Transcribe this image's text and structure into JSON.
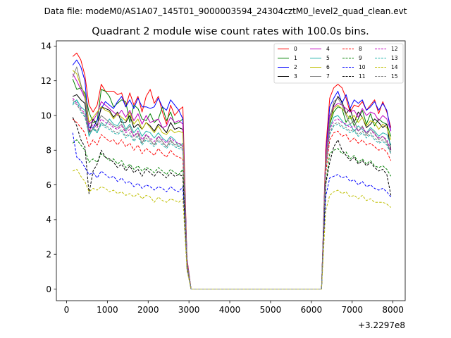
{
  "chart_data": {
    "type": "line",
    "suptitle": "Data file: modeM0/AS1A07_145T01_9000003594_24304cztM0_level2_quad_clean.evt",
    "title": "Quadrant 2 module wise count rates with 100.0s bins.",
    "xlabel": "",
    "ylabel": "",
    "x_offset_label": "+3.2297e8",
    "xlim": [
      -250,
      8300
    ],
    "ylim": [
      -0.67,
      14.3
    ],
    "xticks": [
      0,
      1000,
      2000,
      3000,
      4000,
      5000,
      6000,
      7000,
      8000
    ],
    "xtick_labels": [
      "0",
      "1000",
      "2000",
      "3000",
      "4000",
      "5000",
      "6000",
      "7000",
      "8000"
    ],
    "yticks": [
      0,
      2,
      4,
      6,
      8,
      10,
      12,
      14
    ],
    "ytick_labels": [
      "0",
      "2",
      "4",
      "6",
      "8",
      "10",
      "12",
      "14"
    ],
    "legend_position": "upper-right",
    "legend_columns": 4,
    "x": [
      150,
      250,
      350,
      450,
      550,
      650,
      750,
      850,
      950,
      1050,
      1150,
      1250,
      1350,
      1450,
      1550,
      1650,
      1750,
      1850,
      1950,
      2050,
      2150,
      2250,
      2350,
      2450,
      2550,
      2650,
      2750,
      2850,
      2950,
      3050,
      6250,
      6350,
      6450,
      6550,
      6650,
      6750,
      6850,
      6950,
      7050,
      7150,
      7250,
      7350,
      7450,
      7550,
      7650,
      7750,
      7850,
      7950
    ],
    "series": [
      {
        "name": "0",
        "color": "#ff0000",
        "dash": "solid",
        "values": [
          13.4,
          13.6,
          13.2,
          12.3,
          10.6,
          10.2,
          10.6,
          11.8,
          11.4,
          11.4,
          11.4,
          11.2,
          11.3,
          10.5,
          11.3,
          10.6,
          11.1,
          10.2,
          11.1,
          11.5,
          10.7,
          11.1,
          10.2,
          9.5,
          10.6,
          10.0,
          10.3,
          10.5,
          1.8,
          0.0,
          0.0,
          8.0,
          11.0,
          11.6,
          11.8,
          11.6,
          11.0,
          10.2,
          10.6,
          10.5,
          10.8,
          10.3,
          10.6,
          10.9,
          10.1,
          10.8,
          10.2,
          9.3
        ]
      },
      {
        "name": "1",
        "color": "#008000",
        "dash": "solid",
        "values": [
          12.1,
          11.5,
          11.6,
          11.3,
          10.2,
          9.6,
          9.7,
          11.5,
          11.4,
          11.1,
          10.5,
          10.7,
          10.9,
          10.8,
          9.6,
          10.6,
          10.4,
          9.8,
          9.7,
          10.1,
          9.6,
          9.8,
          10.5,
          9.7,
          10.2,
          9.5,
          9.6,
          9.8,
          1.6,
          0.0,
          0.0,
          7.4,
          9.5,
          10.2,
          10.5,
          10.4,
          9.6,
          10.0,
          9.4,
          9.8,
          10.3,
          9.5,
          10.1,
          9.4,
          9.8,
          9.6,
          9.5,
          8.8
        ]
      },
      {
        "name": "2",
        "color": "#0000ff",
        "dash": "solid",
        "values": [
          12.9,
          13.2,
          12.8,
          12.0,
          9.3,
          9.3,
          9.7,
          10.4,
          10.8,
          10.6,
          10.4,
          10.8,
          11.1,
          10.5,
          10.9,
          10.4,
          11.0,
          10.5,
          10.5,
          10.4,
          10.5,
          11.0,
          10.5,
          10.3,
          10.9,
          10.6,
          10.3,
          9.8,
          1.7,
          0.0,
          0.0,
          7.6,
          10.5,
          11.0,
          11.4,
          10.7,
          11.2,
          10.4,
          10.9,
          10.7,
          10.9,
          10.3,
          10.5,
          10.8,
          10.3,
          10.7,
          10.3,
          9.1
        ]
      },
      {
        "name": "3",
        "color": "#000000",
        "dash": "solid",
        "values": [
          11.1,
          11.2,
          10.9,
          10.7,
          9.0,
          9.8,
          9.4,
          10.5,
          10.4,
          10.3,
          9.9,
          10.2,
          9.6,
          9.6,
          10.0,
          9.3,
          9.5,
          9.2,
          9.6,
          9.4,
          9.1,
          9.5,
          9.3,
          9.0,
          9.6,
          9.2,
          9.3,
          9.2,
          1.6,
          0.0,
          0.0,
          7.3,
          9.5,
          10.6,
          11.1,
          10.8,
          10.1,
          10.4,
          9.6,
          10.2,
          9.9,
          9.3,
          9.5,
          9.8,
          9.6,
          9.3,
          9.5,
          8.0
        ]
      },
      {
        "name": "4",
        "color": "#bf00bf",
        "dash": "solid",
        "values": [
          12.4,
          12.0,
          11.5,
          11.0,
          9.5,
          9.7,
          10.1,
          10.8,
          10.6,
          10.4,
          10.2,
          10.0,
          10.3,
          9.9,
          10.3,
          9.7,
          10.1,
          9.5,
          10.0,
          9.6,
          9.7,
          9.8,
          9.3,
          9.4,
          9.9,
          9.6,
          9.7,
          9.5,
          1.7,
          0.0,
          0.0,
          7.5,
          10.0,
          10.5,
          10.7,
          10.6,
          10.4,
          10.2,
          10.3,
          9.9,
          10.4,
          10.0,
          10.2,
          10.1,
          9.7,
          10.0,
          9.8,
          9.1
        ]
      },
      {
        "name": "5",
        "color": "#20b2aa",
        "dash": "solid",
        "values": [
          10.7,
          10.9,
          10.5,
          10.3,
          8.8,
          9.3,
          9.0,
          9.6,
          9.4,
          9.8,
          9.5,
          9.4,
          9.8,
          9.2,
          9.5,
          9.0,
          9.3,
          8.8,
          9.1,
          9.0,
          8.7,
          9.0,
          8.7,
          8.5,
          8.8,
          8.6,
          8.2,
          8.4,
          1.5,
          0.0,
          0.0,
          7.1,
          9.3,
          9.9,
          10.0,
          9.7,
          9.4,
          9.5,
          9.1,
          9.4,
          9.2,
          9.0,
          9.3,
          9.1,
          8.8,
          9.0,
          8.9,
          8.3
        ]
      },
      {
        "name": "6",
        "color": "#bfbf00",
        "dash": "solid",
        "values": [
          12.6,
          12.4,
          11.7,
          11.2,
          9.6,
          9.9,
          10.2,
          10.5,
          10.3,
          10.2,
          9.8,
          10.1,
          9.9,
          9.7,
          10.2,
          9.5,
          9.8,
          9.2,
          9.6,
          9.3,
          9.0,
          9.4,
          9.0,
          8.9,
          9.2,
          9.0,
          9.1,
          9.0,
          1.6,
          0.0,
          0.0,
          7.3,
          9.6,
          10.4,
          10.6,
          10.4,
          10.1,
          9.8,
          10.0,
          9.6,
          9.9,
          9.4,
          9.7,
          9.6,
          9.2,
          9.5,
          9.3,
          8.6
        ]
      },
      {
        "name": "7",
        "color": "#808080",
        "dash": "solid",
        "values": [
          12.2,
          12.8,
          11.8,
          11.0,
          9.0,
          9.2,
          9.5,
          10.0,
          9.8,
          9.6,
          9.4,
          9.3,
          9.5,
          9.1,
          9.4,
          8.8,
          9.0,
          8.4,
          8.9,
          8.6,
          8.3,
          8.8,
          8.5,
          8.2,
          8.6,
          8.3,
          8.4,
          8.2,
          1.5,
          0.0,
          0.0,
          7.0,
          9.8,
          10.8,
          11.0,
          10.6,
          10.0,
          9.5,
          9.7,
          9.1,
          9.4,
          8.9,
          9.2,
          9.0,
          8.6,
          8.8,
          8.5,
          7.8
        ]
      },
      {
        "name": "8",
        "color": "#ff0000",
        "dash": "dashed",
        "values": [
          9.8,
          9.6,
          9.3,
          9.0,
          8.2,
          8.6,
          8.3,
          8.9,
          8.7,
          8.5,
          8.6,
          8.3,
          8.6,
          8.2,
          8.4,
          8.0,
          8.3,
          7.8,
          8.1,
          7.9,
          7.7,
          8.1,
          7.8,
          7.6,
          8.0,
          7.7,
          7.6,
          7.5,
          1.4,
          0.0,
          0.0,
          6.6,
          8.6,
          9.0,
          9.1,
          8.8,
          8.9,
          8.5,
          8.7,
          8.4,
          8.6,
          8.3,
          8.4,
          8.2,
          8.0,
          8.1,
          7.9,
          7.4
        ]
      },
      {
        "name": "9",
        "color": "#008000",
        "dash": "dashed",
        "values": [
          8.4,
          8.6,
          8.3,
          8.0,
          7.3,
          7.5,
          7.3,
          7.8,
          7.6,
          7.4,
          7.5,
          7.2,
          7.4,
          7.0,
          7.2,
          6.9,
          7.1,
          6.8,
          7.0,
          6.9,
          6.7,
          7.0,
          6.8,
          6.6,
          6.9,
          6.7,
          6.6,
          6.9,
          1.3,
          0.0,
          0.0,
          6.0,
          7.8,
          8.0,
          8.1,
          7.8,
          7.9,
          7.5,
          7.7,
          7.3,
          7.5,
          7.2,
          7.4,
          7.1,
          7.0,
          7.1,
          6.9,
          6.5
        ]
      },
      {
        "name": "10",
        "color": "#0000ff",
        "dash": "dashed",
        "values": [
          9.0,
          7.6,
          7.4,
          7.0,
          6.6,
          6.7,
          6.4,
          6.8,
          6.6,
          6.4,
          6.5,
          6.2,
          6.4,
          6.1,
          6.2,
          5.9,
          6.1,
          5.8,
          6.0,
          5.9,
          5.7,
          5.9,
          5.8,
          5.6,
          5.9,
          5.7,
          5.6,
          5.9,
          1.2,
          0.0,
          0.0,
          5.3,
          6.4,
          6.5,
          6.6,
          6.4,
          6.5,
          6.2,
          6.3,
          6.0,
          6.2,
          5.9,
          6.0,
          5.8,
          5.7,
          5.8,
          5.6,
          5.3
        ]
      },
      {
        "name": "11",
        "color": "#000000",
        "dash": "dashed",
        "values": [
          9.9,
          9.4,
          8.6,
          8.2,
          5.5,
          6.8,
          7.2,
          8.0,
          7.6,
          7.5,
          7.3,
          7.0,
          7.2,
          6.8,
          7.1,
          6.7,
          6.9,
          6.5,
          6.9,
          6.7,
          6.5,
          6.8,
          6.6,
          6.4,
          6.7,
          6.5,
          6.6,
          6.5,
          1.3,
          0.0,
          0.0,
          6.0,
          7.3,
          8.2,
          8.6,
          8.0,
          7.7,
          7.4,
          7.6,
          7.2,
          7.4,
          7.1,
          7.3,
          7.0,
          6.8,
          6.9,
          6.6,
          5.4
        ]
      },
      {
        "name": "12",
        "color": "#bf00bf",
        "dash": "dashed",
        "values": [
          11.0,
          10.7,
          10.4,
          10.1,
          9.1,
          9.5,
          9.3,
          9.8,
          9.6,
          9.5,
          9.3,
          9.2,
          9.4,
          9.0,
          9.2,
          8.8,
          9.1,
          8.6,
          8.9,
          8.7,
          8.5,
          8.8,
          8.6,
          8.4,
          8.7,
          8.5,
          8.4,
          8.3,
          1.5,
          0.0,
          0.0,
          7.1,
          9.2,
          9.7,
          9.8,
          9.6,
          9.5,
          9.3,
          9.4,
          9.1,
          9.3,
          9.0,
          9.2,
          8.9,
          8.7,
          8.8,
          8.6,
          8.0
        ]
      },
      {
        "name": "13",
        "color": "#20b2aa",
        "dash": "dashed",
        "values": [
          10.6,
          10.9,
          10.2,
          9.9,
          8.9,
          9.2,
          9.0,
          9.5,
          9.3,
          9.2,
          9.0,
          8.9,
          9.1,
          8.7,
          8.9,
          8.5,
          8.8,
          8.3,
          8.6,
          8.4,
          8.2,
          8.5,
          8.3,
          8.1,
          8.4,
          8.2,
          8.1,
          8.0,
          1.5,
          0.0,
          0.0,
          6.9,
          8.9,
          9.4,
          9.5,
          9.3,
          9.2,
          9.0,
          9.1,
          8.8,
          9.0,
          8.7,
          8.9,
          8.6,
          8.4,
          8.5,
          8.3,
          7.8
        ]
      },
      {
        "name": "14",
        "color": "#bfbf00",
        "dash": "dashed",
        "values": [
          6.8,
          6.9,
          6.5,
          6.2,
          5.6,
          5.8,
          5.7,
          5.9,
          5.8,
          5.6,
          5.7,
          5.5,
          5.6,
          5.4,
          5.5,
          5.3,
          5.5,
          5.2,
          5.4,
          5.3,
          5.0,
          5.3,
          5.1,
          5.0,
          5.2,
          5.1,
          5.0,
          5.2,
          1.1,
          0.0,
          0.0,
          4.5,
          5.4,
          5.6,
          5.7,
          5.5,
          5.6,
          5.3,
          5.4,
          5.2,
          5.4,
          5.1,
          5.2,
          5.0,
          5.0,
          5.0,
          4.9,
          4.7
        ]
      },
      {
        "name": "15",
        "color": "#808080",
        "dash": "dashed",
        "values": [
          10.9,
          10.6,
          10.3,
          10.0,
          9.0,
          9.3,
          9.1,
          9.6,
          9.4,
          9.3,
          9.1,
          9.0,
          9.2,
          8.8,
          9.0,
          8.6,
          8.9,
          8.4,
          8.7,
          8.5,
          8.3,
          8.6,
          8.4,
          8.2,
          8.5,
          8.3,
          8.2,
          8.1,
          1.5,
          0.0,
          0.0,
          7.0,
          9.0,
          9.5,
          9.6,
          9.4,
          9.3,
          9.1,
          9.2,
          8.9,
          9.1,
          8.8,
          9.0,
          8.7,
          8.5,
          8.6,
          8.4,
          7.9
        ]
      }
    ]
  }
}
